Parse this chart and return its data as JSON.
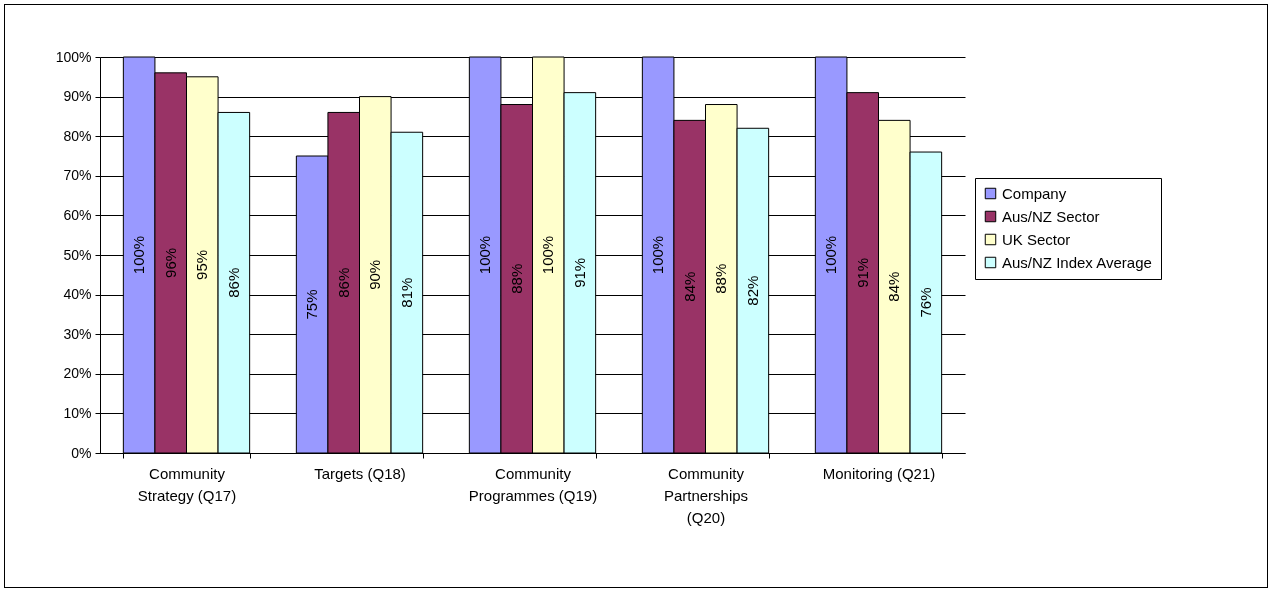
{
  "chart_data": {
    "type": "bar",
    "categories": [
      "Community Strategy (Q17)",
      "Targets (Q18)",
      "Community Programmes (Q19)",
      "Community Partnerships (Q20)",
      "Monitoring (Q21)"
    ],
    "series": [
      {
        "name": "Company",
        "color": "#9999ff",
        "values": [
          100,
          75,
          100,
          100,
          100
        ],
        "value_labels": [
          "100%",
          "75%",
          "100%",
          "100%",
          "100%"
        ]
      },
      {
        "name": "Aus/NZ Sector",
        "color": "#993366",
        "values": [
          96,
          86,
          88,
          84,
          91
        ],
        "value_labels": [
          "96%",
          "86%",
          "88%",
          "84%",
          "91%"
        ]
      },
      {
        "name": "UK Sector",
        "color": "#ffffcc",
        "values": [
          95,
          90,
          100,
          88,
          84
        ],
        "value_labels": [
          "95%",
          "90%",
          "100%",
          "88%",
          "84%"
        ]
      },
      {
        "name": "Aus/NZ Index Average",
        "color": "#ccffff",
        "values": [
          86,
          81,
          91,
          82,
          76
        ],
        "value_labels": [
          "86%",
          "81%",
          "91%",
          "82%",
          "76%"
        ]
      }
    ],
    "ylim": [
      0,
      100
    ],
    "yticks": [
      {
        "value": 0,
        "label": "0%"
      },
      {
        "value": 10,
        "label": "10%"
      },
      {
        "value": 20,
        "label": "20%"
      },
      {
        "value": 30,
        "label": "30%"
      },
      {
        "value": 40,
        "label": "40%"
      },
      {
        "value": 50,
        "label": "50%"
      },
      {
        "value": 60,
        "label": "60%"
      },
      {
        "value": 70,
        "label": "70%"
      },
      {
        "value": 80,
        "label": "80%"
      },
      {
        "value": 90,
        "label": "90%"
      },
      {
        "value": 100,
        "label": "100%"
      }
    ],
    "grid": "y",
    "legend": "right"
  }
}
